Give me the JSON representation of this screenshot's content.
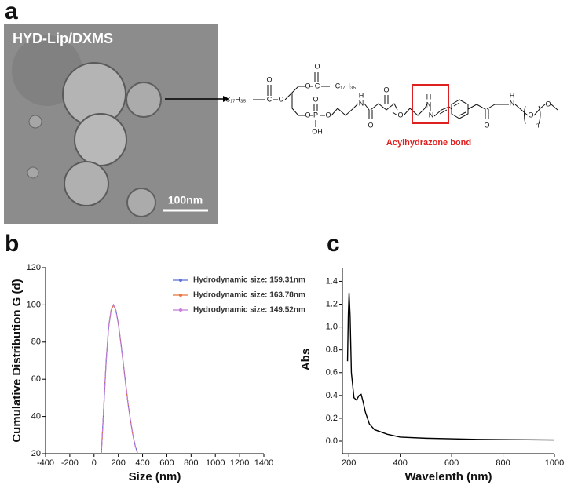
{
  "panel_labels": [
    "a",
    "b",
    "c"
  ],
  "micrograph": {
    "label": "HYD-Lip/DXMS",
    "scale_bar": "100nm"
  },
  "scheme": {
    "atoms": [
      "C₁₇H₃₅",
      "C",
      "O",
      "O",
      "O",
      "C",
      "O",
      "C₁₇H₃₅",
      "O",
      "P",
      "O",
      "OH",
      "O",
      "N",
      "H",
      "O",
      "O",
      "O",
      "H",
      "N",
      "N",
      "O",
      "N",
      "H",
      "O",
      "n",
      "O"
    ],
    "annotation": "Acylhydrazone bond"
  },
  "chart_data": [
    {
      "type": "line",
      "xlabel": "Size (nm)",
      "ylabel": "Cumulative Distribution G (d)",
      "x": [
        60,
        80,
        100,
        120,
        140,
        160,
        180,
        200,
        220,
        240,
        260,
        280,
        300,
        320,
        340,
        360
      ],
      "series": [
        {
          "name": "Hydrodynamic size: 159.31nm",
          "color": "#5b6fd6",
          "values": [
            20,
            45,
            70,
            88,
            97,
            100,
            97,
            90,
            80,
            69,
            58,
            47,
            38,
            30,
            24,
            20
          ]
        },
        {
          "name": "Hydrodynamic size: 163.78nm",
          "color": "#e8743b",
          "values": [
            20,
            45,
            70,
            88,
            97,
            100,
            97,
            90,
            80,
            69,
            58,
            47,
            38,
            30,
            24,
            20
          ]
        },
        {
          "name": "Hydrodynamic size: 149.52nm",
          "color": "#c77bd9",
          "values": [
            20,
            45,
            70,
            88,
            97,
            100,
            97,
            90,
            80,
            69,
            58,
            47,
            38,
            30,
            24,
            20
          ]
        }
      ],
      "xlim": [
        -400,
        1400
      ],
      "xticks": [
        -400,
        -200,
        0,
        200,
        400,
        600,
        800,
        1000,
        1200,
        1400
      ],
      "ylim": [
        20,
        120
      ],
      "yticks": [
        20,
        40,
        60,
        80,
        100,
        120
      ],
      "legend": "upper right",
      "grid": false
    },
    {
      "type": "line",
      "xlabel": "Wavelenth (nm)",
      "ylabel": "Abs",
      "x": [
        195,
        198,
        201,
        205,
        210,
        220,
        230,
        240,
        248,
        255,
        265,
        280,
        300,
        350,
        400,
        500,
        700,
        1000
      ],
      "series": [
        {
          "color": "#000000",
          "values": [
            0.7,
            1.1,
            1.3,
            1.1,
            0.6,
            0.38,
            0.36,
            0.4,
            0.41,
            0.35,
            0.25,
            0.15,
            0.1,
            0.06,
            0.035,
            0.025,
            0.015,
            0.01
          ]
        }
      ],
      "xlim": [
        175,
        1000
      ],
      "xticks": [
        200,
        400,
        600,
        800,
        1000
      ],
      "ylim": [
        -0.11,
        1.52
      ],
      "yticks": [
        {
          "value": 0,
          "label": "0.0"
        },
        0.2,
        0.4,
        0.6,
        0.8,
        {
          "value": 1,
          "label": "1.0"
        },
        1.2,
        1.4
      ],
      "grid": false
    }
  ]
}
